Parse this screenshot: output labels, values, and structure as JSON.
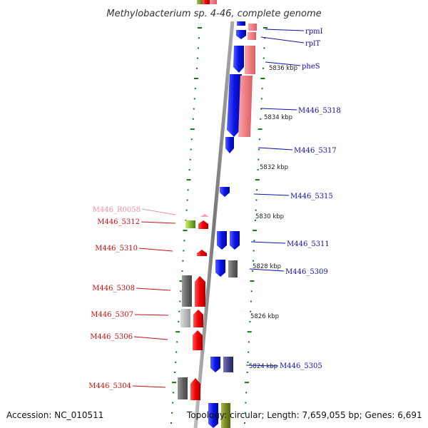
{
  "title": "Methylobacterium sp. 4-46, complete genome",
  "accession": "Accession: NC_010511",
  "topology": "Topology: circular; Length: 7,659,055 bp; Genes: 6,691",
  "scale_labels": [
    "5836 kbp",
    "5834 kbp",
    "5832 kbp",
    "5830 kbp",
    "5828 kbp",
    "5826 kbp",
    "5824 kbp"
  ],
  "right_genes": [
    "rpmI",
    "rplT",
    "pheS",
    "M446_5318",
    "M446_5317",
    "M446_5315",
    "M446_5311",
    "M446_5309",
    "M446_5305"
  ],
  "left_genes": [
    "M446_R0058",
    "M446_5312",
    "M446_5310",
    "M446_5308",
    "M446_5307",
    "M446_5306",
    "M446_5304"
  ],
  "colors": {
    "forward_gene": "#0a14e6",
    "forward_rna": "#f0858a",
    "reverse_gene": "#ee1111",
    "reverse_other": "#666666",
    "trna": "#ff9ec0",
    "label_right": "#1010b0",
    "label_left": "#cc1010",
    "label_rna": "#ee8fb0",
    "axis": "#888888",
    "tick": "#117711"
  }
}
